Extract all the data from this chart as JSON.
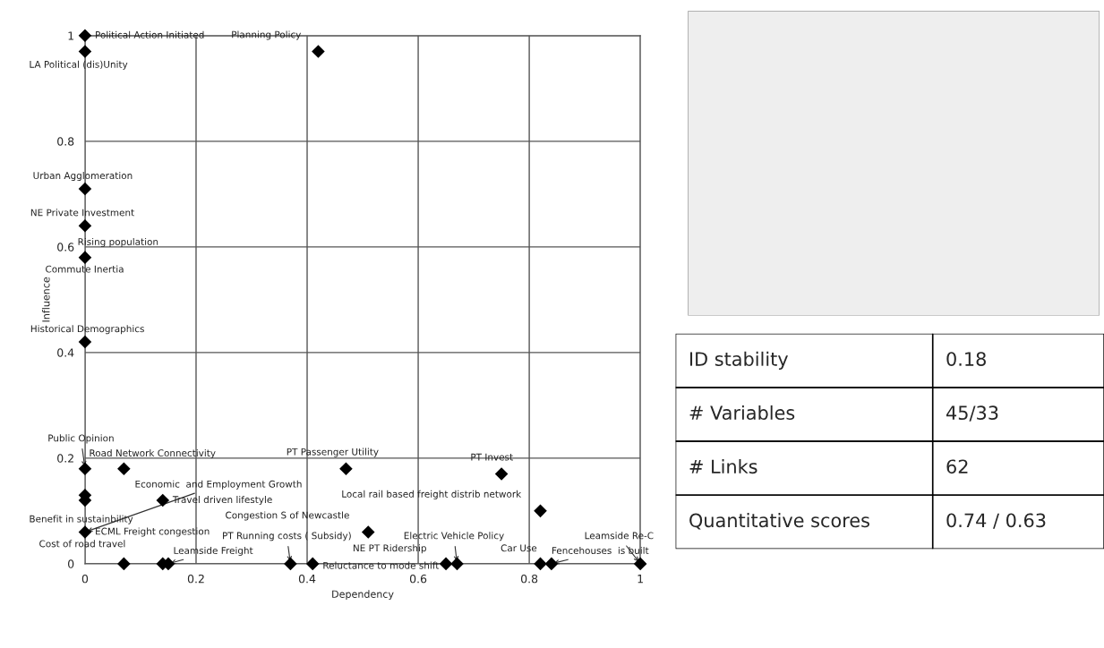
{
  "chart_data": [
    {
      "type": "scatter",
      "xlabel": "Dependency",
      "ylabel": "Influence",
      "color": "#000000",
      "marker": "diamond",
      "grid": true,
      "xlim": [
        0,
        1
      ],
      "ylim": [
        0,
        1
      ],
      "xticks": [
        0,
        0.2,
        0.4,
        0.6,
        0.8,
        1
      ],
      "yticks": [
        0,
        0.2,
        0.4,
        0.6,
        0.8,
        1
      ],
      "x": [
        0,
        0,
        0.42,
        0,
        0,
        0,
        0,
        0,
        0.07,
        0.47,
        0.75,
        0,
        0,
        0.14,
        0.82,
        0,
        0.51,
        0.07,
        0.14,
        0.15,
        0.37,
        0.41,
        0.65,
        0.67,
        0.82,
        0.84,
        1
      ],
      "values": [
        1,
        0.97,
        0.97,
        0.71,
        0.64,
        0.58,
        0.42,
        0.18,
        0.18,
        0.18,
        0.17,
        0.13,
        0.12,
        0.12,
        0.1,
        0.06,
        0.06,
        0,
        0,
        0,
        0,
        0,
        0,
        0,
        0,
        0,
        0
      ],
      "annotations": [
        {
          "text": "Political Action Initiated",
          "x": 0,
          "y": 1
        },
        {
          "text": "LA Political (dis)Unity",
          "x": 0,
          "y": 0.97
        },
        {
          "text": "Planning Policy",
          "x": 0.42,
          "y": 0.97
        },
        {
          "text": "Urban Agglomeration",
          "x": 0,
          "y": 0.71
        },
        {
          "text": "NE Private Investment",
          "x": 0,
          "y": 0.64
        },
        {
          "text": "Rising population",
          "x": 0,
          "y": 0.58
        },
        {
          "text": "Commute Inertia",
          "x": 0,
          "y": 0.58
        },
        {
          "text": "Historical Demographics",
          "x": 0,
          "y": 0.42
        },
        {
          "text": "Public Opinion",
          "x": 0,
          "y": 0.18
        },
        {
          "text": "Road Network Connectivity",
          "x": 0.07,
          "y": 0.18
        },
        {
          "text": "PT Passenger Utility",
          "x": 0.47,
          "y": 0.18
        },
        {
          "text": "PT Invest",
          "x": 0.75,
          "y": 0.17
        },
        {
          "text": "Economic  and Employment Growth",
          "x": 0,
          "y": 0.06
        },
        {
          "text": "Travel driven lifestyle",
          "x": 0.14,
          "y": 0.12
        },
        {
          "text": "Local rail based freight distrib network",
          "x": 0.82,
          "y": 0.1
        },
        {
          "text": "Benefit in sustainbility",
          "x": 0,
          "y": 0.06
        },
        {
          "text": "ECML Freight congestion",
          "x": 0,
          "y": 0.06
        },
        {
          "text": "Cost of road travel",
          "x": 0,
          "y": 0.06
        },
        {
          "text": "Congestion S of Newcastle",
          "x": 0.51,
          "y": 0.06
        },
        {
          "text": "Leamside Freight",
          "x": 0.15,
          "y": 0
        },
        {
          "text": "PT Running costs ( Subsidy)",
          "x": 0.37,
          "y": 0
        },
        {
          "text": "Reluctance to mode shift",
          "x": 0.41,
          "y": 0
        },
        {
          "text": "NE PT Ridership",
          "x": 0.65,
          "y": 0
        },
        {
          "text": "Electric Vehicle Policy",
          "x": 0.67,
          "y": 0
        },
        {
          "text": "Car Use",
          "x": 0.82,
          "y": 0
        },
        {
          "text": "Fencehouses  is built",
          "x": 0.84,
          "y": 0
        },
        {
          "text": "Leamside Re-C",
          "x": 1,
          "y": 0
        }
      ]
    },
    {
      "type": "other",
      "annotations": [
        "ID stability",
        "0.18",
        "# Variables",
        "45/33",
        "# Links",
        "62",
        "Quantitative scores",
        "0.74 / 0.63"
      ]
    }
  ]
}
